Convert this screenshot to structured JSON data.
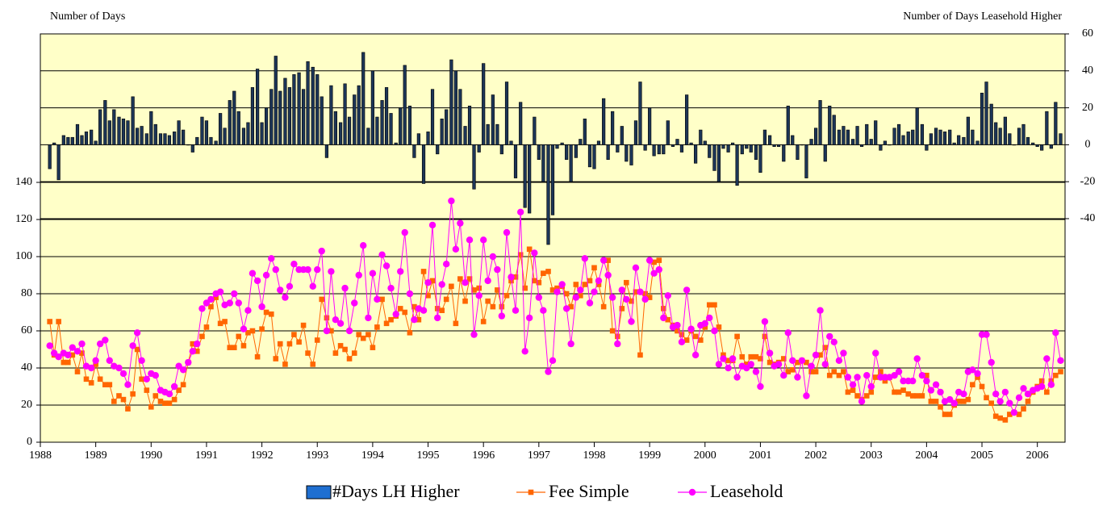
{
  "chart_data": {
    "type": "combo",
    "ylabel": "Number of Days",
    "y2label": "Number of Days Leasehold Higher",
    "xlim": [
      1988,
      2006.5
    ],
    "xticks": [
      1988,
      1989,
      1990,
      1991,
      1992,
      1993,
      1994,
      1995,
      1996,
      1997,
      1998,
      1999,
      2000,
      2001,
      2002,
      2003,
      2004,
      2005,
      2006
    ],
    "ylim": [
      0,
      220
    ],
    "yticks": [
      0,
      20,
      40,
      60,
      80,
      100,
      120,
      140
    ],
    "y2lim": [
      -161,
      60
    ],
    "y2ticks": [
      -40,
      -20,
      0,
      20,
      40,
      60
    ],
    "grid": true,
    "legend": "bottom",
    "background": "#ffffc8",
    "x": [
      1988.17,
      1988.25,
      1988.33,
      1988.42,
      1988.5,
      1988.58,
      1988.67,
      1988.75,
      1988.83,
      1988.92,
      1989,
      1989.08,
      1989.17,
      1989.25,
      1989.33,
      1989.42,
      1989.5,
      1989.58,
      1989.67,
      1989.75,
      1989.83,
      1989.92,
      1990,
      1990.08,
      1990.17,
      1990.25,
      1990.33,
      1990.42,
      1990.5,
      1990.58,
      1990.67,
      1990.75,
      1990.83,
      1990.92,
      1991,
      1991.08,
      1991.17,
      1991.25,
      1991.33,
      1991.42,
      1991.5,
      1991.58,
      1991.67,
      1991.75,
      1991.83,
      1991.92,
      1992,
      1992.08,
      1992.17,
      1992.25,
      1992.33,
      1992.42,
      1992.5,
      1992.58,
      1992.67,
      1992.75,
      1992.83,
      1992.92,
      1993,
      1993.08,
      1993.17,
      1993.25,
      1993.33,
      1993.42,
      1993.5,
      1993.58,
      1993.67,
      1993.75,
      1993.83,
      1993.92,
      1994,
      1994.08,
      1994.17,
      1994.25,
      1994.33,
      1994.42,
      1994.5,
      1994.58,
      1994.67,
      1994.75,
      1994.83,
      1994.92,
      1995,
      1995.08,
      1995.17,
      1995.25,
      1995.33,
      1995.42,
      1995.5,
      1995.58,
      1995.67,
      1995.75,
      1995.83,
      1995.92,
      1996,
      1996.08,
      1996.17,
      1996.25,
      1996.33,
      1996.42,
      1996.5,
      1996.58,
      1996.67,
      1996.75,
      1996.83,
      1996.92,
      1997,
      1997.08,
      1997.17,
      1997.25,
      1997.33,
      1997.42,
      1997.5,
      1997.58,
      1997.67,
      1997.75,
      1997.83,
      1997.92,
      1998,
      1998.08,
      1998.17,
      1998.25,
      1998.33,
      1998.42,
      1998.5,
      1998.58,
      1998.67,
      1998.75,
      1998.83,
      1998.92,
      1999,
      1999.08,
      1999.17,
      1999.25,
      1999.33,
      1999.42,
      1999.5,
      1999.58,
      1999.67,
      1999.75,
      1999.83,
      1999.92,
      2000,
      2000.08,
      2000.17,
      2000.25,
      2000.33,
      2000.42,
      2000.5,
      2000.58,
      2000.67,
      2000.75,
      2000.83,
      2000.92,
      2001,
      2001.08,
      2001.17,
      2001.25,
      2001.33,
      2001.42,
      2001.5,
      2001.58,
      2001.67,
      2001.75,
      2001.83,
      2001.92,
      2002,
      2002.08,
      2002.17,
      2002.25,
      2002.33,
      2002.42,
      2002.5,
      2002.58,
      2002.67,
      2002.75,
      2002.83,
      2002.92,
      2003,
      2003.08,
      2003.17,
      2003.25,
      2003.33,
      2003.42,
      2003.5,
      2003.58,
      2003.67,
      2003.75,
      2003.83,
      2003.92,
      2004,
      2004.08,
      2004.17,
      2004.25,
      2004.33,
      2004.42,
      2004.5,
      2004.58,
      2004.67,
      2004.75,
      2004.83,
      2004.92,
      2005,
      2005.08,
      2005.17,
      2005.25,
      2005.33,
      2005.42,
      2005.5,
      2005.58,
      2005.67,
      2005.75,
      2005.83,
      2005.92,
      2006,
      2006.08,
      2006.17,
      2006.25,
      2006.33,
      2006.42
    ],
    "series": [
      {
        "name": "#Days LH Higher",
        "type": "bar",
        "axis": "y2",
        "color": "#1c3557",
        "values": [
          -13,
          1,
          -19,
          5,
          4,
          4,
          11,
          5,
          7,
          8,
          2,
          19,
          24,
          13,
          19,
          15,
          14,
          13,
          26,
          9,
          10,
          6,
          18,
          11,
          6,
          6,
          5,
          7,
          13,
          8,
          0,
          -4,
          4,
          15,
          13,
          4,
          2,
          17,
          9,
          24,
          29,
          18,
          9,
          12,
          31,
          41,
          12,
          20,
          30,
          48,
          29,
          36,
          31,
          38,
          39,
          30,
          45,
          42,
          38,
          26,
          -7,
          32,
          18,
          12,
          33,
          15,
          27,
          32,
          50,
          9,
          40,
          15,
          24,
          31,
          17,
          1,
          20,
          43,
          21,
          -7,
          6,
          -21,
          7,
          30,
          -5,
          14,
          19,
          46,
          40,
          30,
          10,
          21,
          -24,
          -4,
          44,
          11,
          27,
          11,
          -5,
          34,
          2,
          -18,
          23,
          -34,
          -37,
          15,
          -8,
          -20,
          -54,
          -38,
          -2,
          1,
          -8,
          -20,
          -7,
          3,
          14,
          -12,
          -13,
          2,
          25,
          -8,
          18,
          -4,
          10,
          -9,
          -11,
          13,
          34,
          -3,
          20,
          -6,
          -5,
          -5,
          13,
          -1,
          3,
          -4,
          27,
          1,
          -10,
          8,
          2,
          -7,
          -14,
          -20,
          -2,
          -4,
          1,
          -22,
          -5,
          -2,
          -4,
          -8,
          -15,
          8,
          5,
          -1,
          -1,
          -9,
          21,
          5,
          -8,
          0,
          -18,
          3,
          9,
          24,
          -9,
          21,
          16,
          8,
          10,
          8,
          3,
          10,
          -1,
          11,
          3,
          13,
          -3,
          2,
          0,
          9,
          11,
          5,
          7,
          8,
          20,
          11,
          -3,
          6,
          9,
          8,
          7,
          8,
          1,
          5,
          4,
          15,
          8,
          2,
          28,
          34,
          22,
          12,
          9,
          15,
          6,
          0,
          9,
          11,
          4,
          1,
          -1,
          -3,
          18,
          -2,
          23,
          6
        ]
      },
      {
        "name": "Fee Simple",
        "type": "line",
        "marker": "square",
        "color": "#ff6600",
        "values": [
          65,
          47,
          65,
          43,
          43,
          47,
          38,
          48,
          34,
          32,
          42,
          34,
          31,
          31,
          22,
          25,
          23,
          18,
          26,
          50,
          34,
          28,
          19,
          25,
          22,
          21,
          21,
          23,
          28,
          31,
          43,
          53,
          49,
          57,
          62,
          73,
          78,
          64,
          65,
          51,
          51,
          57,
          52,
          59,
          60,
          46,
          61,
          70,
          69,
          45,
          53,
          42,
          53,
          58,
          54,
          63,
          48,
          42,
          55,
          77,
          67,
          60,
          48,
          52,
          50,
          45,
          48,
          58,
          56,
          58,
          51,
          62,
          77,
          64,
          66,
          68,
          72,
          70,
          59,
          73,
          66,
          92,
          79,
          87,
          72,
          71,
          77,
          84,
          64,
          88,
          76,
          88,
          82,
          83,
          65,
          76,
          73,
          82,
          73,
          79,
          87,
          89,
          101,
          83,
          104,
          87,
          86,
          91,
          92,
          82,
          83,
          84,
          80,
          73,
          85,
          79,
          85,
          87,
          94,
          85,
          73,
          98,
          60,
          57,
          72,
          86,
          76,
          81,
          47,
          80,
          78,
          97,
          98,
          72,
          66,
          63,
          60,
          58,
          55,
          60,
          57,
          55,
          62,
          74,
          74,
          62,
          47,
          44,
          44,
          57,
          46,
          42,
          46,
          46,
          45,
          57,
          43,
          42,
          43,
          45,
          38,
          39,
          43,
          44,
          43,
          38,
          38,
          47,
          51,
          36,
          38,
          36,
          38,
          27,
          28,
          25,
          23,
          25,
          27,
          35,
          38,
          33,
          35,
          27,
          27,
          28,
          26,
          25,
          25,
          25,
          36,
          22,
          22,
          19,
          15,
          15,
          20,
          22,
          22,
          23,
          31,
          35,
          30,
          24,
          21,
          14,
          13,
          12,
          15,
          16,
          15,
          18,
          22,
          27,
          30,
          33,
          27,
          33,
          36,
          38
        ]
      },
      {
        "name": "Leasehold",
        "type": "line",
        "marker": "circle",
        "color": "#ff00ff",
        "values": [
          52,
          48,
          46,
          48,
          47,
          51,
          49,
          53,
          41,
          40,
          44,
          53,
          55,
          44,
          41,
          40,
          37,
          31,
          52,
          59,
          44,
          34,
          37,
          36,
          28,
          27,
          26,
          30,
          41,
          39,
          43,
          49,
          53,
          72,
          75,
          77,
          80,
          81,
          74,
          75,
          80,
          75,
          61,
          71,
          91,
          87,
          73,
          90,
          99,
          93,
          82,
          78,
          84,
          96,
          93,
          93,
          93,
          84,
          93,
          103,
          60,
          92,
          66,
          64,
          83,
          60,
          75,
          90,
          106,
          67,
          91,
          77,
          101,
          95,
          83,
          69,
          92,
          113,
          80,
          66,
          72,
          71,
          86,
          117,
          67,
          85,
          96,
          130,
          104,
          118,
          86,
          109,
          58,
          79,
          109,
          87,
          100,
          93,
          68,
          113,
          89,
          71,
          124,
          49,
          67,
          102,
          78,
          71,
          38,
          44,
          81,
          85,
          72,
          53,
          78,
          82,
          99,
          75,
          81,
          87,
          98,
          90,
          78,
          53,
          82,
          77,
          65,
          94,
          81,
          77,
          98,
          91,
          93,
          67,
          79,
          62,
          63,
          54,
          82,
          61,
          47,
          63,
          64,
          67,
          60,
          42,
          45,
          40,
          45,
          35,
          41,
          40,
          42,
          38,
          30,
          65,
          48,
          41,
          42,
          36,
          59,
          44,
          35,
          44,
          25,
          41,
          47,
          71,
          42,
          57,
          54,
          44,
          48,
          35,
          31,
          35,
          22,
          36,
          30,
          48,
          35,
          35,
          35,
          36,
          38,
          33,
          33,
          33,
          45,
          36,
          33,
          28,
          31,
          27,
          22,
          23,
          21,
          27,
          26,
          38,
          39,
          37,
          58,
          58,
          43,
          26,
          22,
          27,
          21,
          16,
          24,
          29,
          26,
          28,
          29,
          30,
          45,
          31,
          59,
          44
        ]
      }
    ]
  }
}
